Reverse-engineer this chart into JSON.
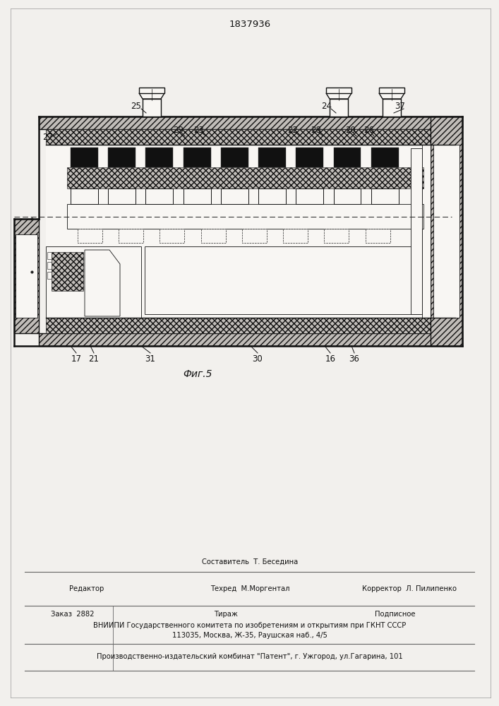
{
  "patent_number": "1837936",
  "fig_label": "Фиг.5",
  "bg_color": "#f2f0ed",
  "footer": {
    "col2_line1": "Составитель  Т. Беседина",
    "col1_line2": "Редактор",
    "col2_line2": "Техред  М.Моргентал",
    "col3_line2": "Корректор  Л. Пилипенко",
    "row2_line1": "Заказ  2882",
    "row2_line2": "Тираж",
    "row2_line3": "Подписное",
    "row2_body": "ВНИИПИ Государственного комитета по изобретениям и открытиям при ГКНТ СССР",
    "row2_addr": "113035, Москва, Ж-35, Раушская наб., 4/5",
    "row3": "Производственно-издательский комбинат \"Патент\", г. Ужгород, ул.Гагарина, 101"
  }
}
